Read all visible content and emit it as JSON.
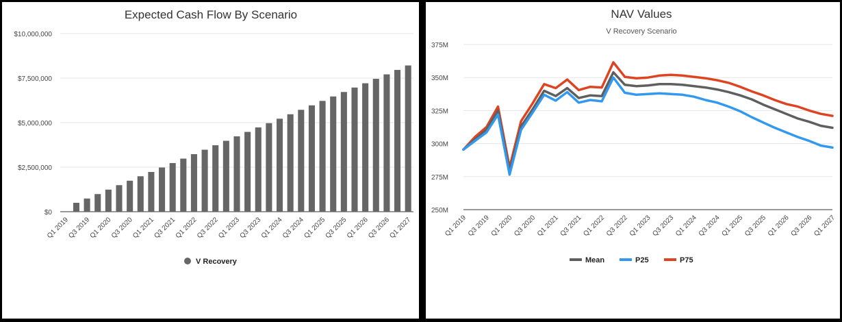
{
  "chart_data": [
    {
      "type": "bar",
      "title": "Expected Cash Flow By Scenario",
      "categories": [
        "Q1 2019",
        "Q2 2019",
        "Q3 2019",
        "Q4 2019",
        "Q1 2020",
        "Q2 2020",
        "Q3 2020",
        "Q4 2020",
        "Q1 2021",
        "Q2 2021",
        "Q3 2021",
        "Q4 2021",
        "Q1 2022",
        "Q2 2022",
        "Q3 2022",
        "Q4 2022",
        "Q1 2023",
        "Q2 2023",
        "Q3 2023",
        "Q4 2023",
        "Q1 2024",
        "Q2 2024",
        "Q3 2024",
        "Q4 2024",
        "Q1 2025",
        "Q2 2025",
        "Q3 2025",
        "Q4 2025",
        "Q1 2026",
        "Q2 2026",
        "Q3 2026",
        "Q4 2026",
        "Q1 2027"
      ],
      "x_tick_labels": [
        "Q1 2019",
        "Q3 2019",
        "Q1 2020",
        "Q3 2020",
        "Q1 2021",
        "Q3 2021",
        "Q1 2022",
        "Q3 2022",
        "Q1 2023",
        "Q3 2023",
        "Q1 2024",
        "Q3 2024",
        "Q1 2025",
        "Q3 2025",
        "Q1 2026",
        "Q3 2026",
        "Q1 2027"
      ],
      "y_tick_labels": [
        "$0",
        "$2,500,000",
        "$5,000,000",
        "$7,500,000",
        "$10,000,000"
      ],
      "y_ticks": [
        0,
        2500000,
        5000000,
        7500000,
        10000000
      ],
      "ylim": [
        0,
        10000000
      ],
      "series": [
        {
          "name": "V Recovery",
          "color": "#666666",
          "values": [
            0,
            500000,
            740000,
            990000,
            1240000,
            1490000,
            1740000,
            1990000,
            2230000,
            2480000,
            2730000,
            2980000,
            3230000,
            3480000,
            3730000,
            3980000,
            4230000,
            4480000,
            4730000,
            4970000,
            5220000,
            5470000,
            5720000,
            5970000,
            6220000,
            6470000,
            6720000,
            6970000,
            7210000,
            7460000,
            7710000,
            7960000,
            8210000
          ]
        }
      ],
      "legend_position": "bottom",
      "grid": true
    },
    {
      "type": "line",
      "title": "NAV Values",
      "subtitle": "V Recovery Scenario",
      "categories": [
        "Q1 2019",
        "Q2 2019",
        "Q3 2019",
        "Q4 2019",
        "Q1 2020",
        "Q2 2020",
        "Q3 2020",
        "Q4 2020",
        "Q1 2021",
        "Q2 2021",
        "Q3 2021",
        "Q4 2021",
        "Q1 2022",
        "Q2 2022",
        "Q3 2022",
        "Q4 2022",
        "Q1 2023",
        "Q2 2023",
        "Q3 2023",
        "Q4 2023",
        "Q1 2024",
        "Q2 2024",
        "Q3 2024",
        "Q4 2024",
        "Q1 2025",
        "Q2 2025",
        "Q3 2025",
        "Q4 2025",
        "Q1 2026",
        "Q2 2026",
        "Q3 2026",
        "Q4 2026",
        "Q1 2027"
      ],
      "x_tick_labels": [
        "Q1 2019",
        "Q3 2019",
        "Q1 2020",
        "Q3 2020",
        "Q1 2021",
        "Q3 2021",
        "Q1 2022",
        "Q3 2022",
        "Q1 2023",
        "Q3 2023",
        "Q1 2024",
        "Q3 2024",
        "Q1 2025",
        "Q3 2025",
        "Q1 2026",
        "Q3 2026",
        "Q1 2027"
      ],
      "y_tick_labels": [
        "250M",
        "275M",
        "300M",
        "325M",
        "350M",
        "375M"
      ],
      "y_ticks": [
        250,
        275,
        300,
        325,
        350,
        375
      ],
      "ylim": [
        250,
        375
      ],
      "y_unit": "M",
      "series": [
        {
          "name": "Mean",
          "color": "#5f5f5f",
          "values": [
            295.5,
            303,
            310.5,
            325,
            279,
            313,
            326,
            340,
            336,
            342,
            334.5,
            336.5,
            336,
            354,
            344.5,
            343.5,
            344,
            345,
            345,
            344.5,
            343.5,
            342.5,
            341,
            339,
            336.5,
            333.5,
            329.5,
            326,
            322.5,
            319,
            316.5,
            313.5,
            312
          ]
        },
        {
          "name": "P25",
          "color": "#3399ee",
          "values": [
            295.5,
            302,
            308.5,
            322,
            276.5,
            310.5,
            323.5,
            337,
            332.5,
            339,
            331,
            333,
            332,
            350,
            338.5,
            337,
            337.5,
            338,
            337.5,
            337,
            335.5,
            333,
            331,
            328,
            324.5,
            320,
            316,
            312,
            308.5,
            305,
            302,
            298.5,
            297
          ]
        },
        {
          "name": "P75",
          "color": "#dd4422",
          "values": [
            295.5,
            305,
            312.5,
            328,
            282,
            317,
            330.5,
            345,
            342,
            348.5,
            340.5,
            343,
            342.5,
            361.5,
            350.5,
            349.5,
            350,
            351.5,
            352,
            351.5,
            350.5,
            349.5,
            348,
            346,
            343,
            339.5,
            336.5,
            333,
            330,
            328,
            325,
            322.5,
            321
          ]
        }
      ],
      "legend_position": "bottom",
      "grid": true
    }
  ]
}
